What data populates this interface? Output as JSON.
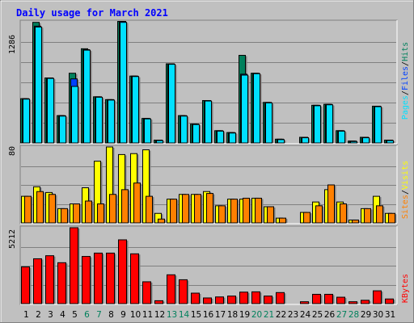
{
  "chart_data": [
    {
      "type": "bar",
      "panel": "top",
      "title": "Daily usage for March 2021",
      "ymax": 1286,
      "ymax_label": "1286",
      "categories": [
        "1",
        "2",
        "3",
        "4",
        "5",
        "6",
        "7",
        "8",
        "9",
        "10",
        "11",
        "12",
        "13",
        "14",
        "15",
        "16",
        "17",
        "18",
        "19",
        "20",
        "21",
        "22",
        "23",
        "24",
        "25",
        "26",
        "27",
        "28",
        "29",
        "30",
        "31"
      ],
      "weekend_days": [
        "6",
        "7",
        "13",
        "14",
        "20",
        "21",
        "27",
        "28"
      ],
      "legend": [
        "Pages",
        "Files",
        "Hits"
      ],
      "legend_separator": "/",
      "series": [
        {
          "name": "Hits",
          "color": "#00805C",
          "values": [
            470,
            1280,
            690,
            290,
            740,
            1000,
            490,
            460,
            1290,
            710,
            260,
            30,
            840,
            290,
            200,
            450,
            130,
            110,
            930,
            740,
            430,
            40,
            0,
            60,
            400,
            410,
            130,
            20,
            60,
            390,
            30
          ]
        },
        {
          "name": "Files",
          "color": "#0040FF",
          "values": [
            470,
            1240,
            690,
            290,
            680,
            990,
            490,
            460,
            1290,
            710,
            260,
            30,
            840,
            290,
            200,
            450,
            130,
            110,
            730,
            740,
            430,
            40,
            0,
            60,
            400,
            410,
            130,
            20,
            60,
            390,
            30
          ]
        },
        {
          "name": "Pages",
          "color": "#00E0FF",
          "values": [
            465,
            1230,
            685,
            285,
            600,
            985,
            485,
            455,
            1280,
            705,
            255,
            25,
            835,
            285,
            195,
            445,
            125,
            105,
            720,
            735,
            425,
            35,
            0,
            55,
            395,
            405,
            125,
            15,
            55,
            385,
            25
          ]
        }
      ]
    },
    {
      "type": "bar",
      "panel": "middle",
      "ymax": 80,
      "ymax_label": "80",
      "legend": [
        "Sites",
        "Visits"
      ],
      "legend_separator": "/",
      "series": [
        {
          "name": "Visits",
          "color": "#FFFF00",
          "values": [
            28,
            38,
            32,
            15,
            20,
            37,
            65,
            80,
            72,
            73,
            77,
            10,
            25,
            30,
            30,
            33,
            18,
            25,
            25,
            26,
            17,
            5,
            0,
            11,
            22,
            35,
            22,
            3,
            15,
            28,
            10
          ]
        },
        {
          "name": "Sites",
          "color": "#FF8000",
          "values": [
            28,
            33,
            30,
            15,
            20,
            23,
            20,
            30,
            35,
            42,
            28,
            4,
            25,
            30,
            30,
            31,
            18,
            25,
            26,
            26,
            17,
            5,
            0,
            11,
            18,
            40,
            20,
            3,
            15,
            18,
            10
          ]
        }
      ]
    },
    {
      "type": "bar",
      "panel": "bottom",
      "ymax": 5212,
      "ymax_label": "5212",
      "legend": [
        "KBytes"
      ],
      "series": [
        {
          "name": "KBytes",
          "color": "#FF0000",
          "values": [
            2520,
            3080,
            3290,
            2810,
            5212,
            3240,
            3470,
            3470,
            4380,
            3420,
            1500,
            200,
            1980,
            1640,
            720,
            390,
            460,
            520,
            790,
            810,
            520,
            760,
            0,
            130,
            640,
            640,
            440,
            130,
            230,
            880,
            320
          ]
        }
      ]
    }
  ],
  "colors": {
    "title": "#0000FF",
    "bar_outline": "#000000",
    "plot_background": "#C0C0C0",
    "gridline": "#808080",
    "weekday_label": "#000000",
    "weekend_label": "#00805C"
  }
}
